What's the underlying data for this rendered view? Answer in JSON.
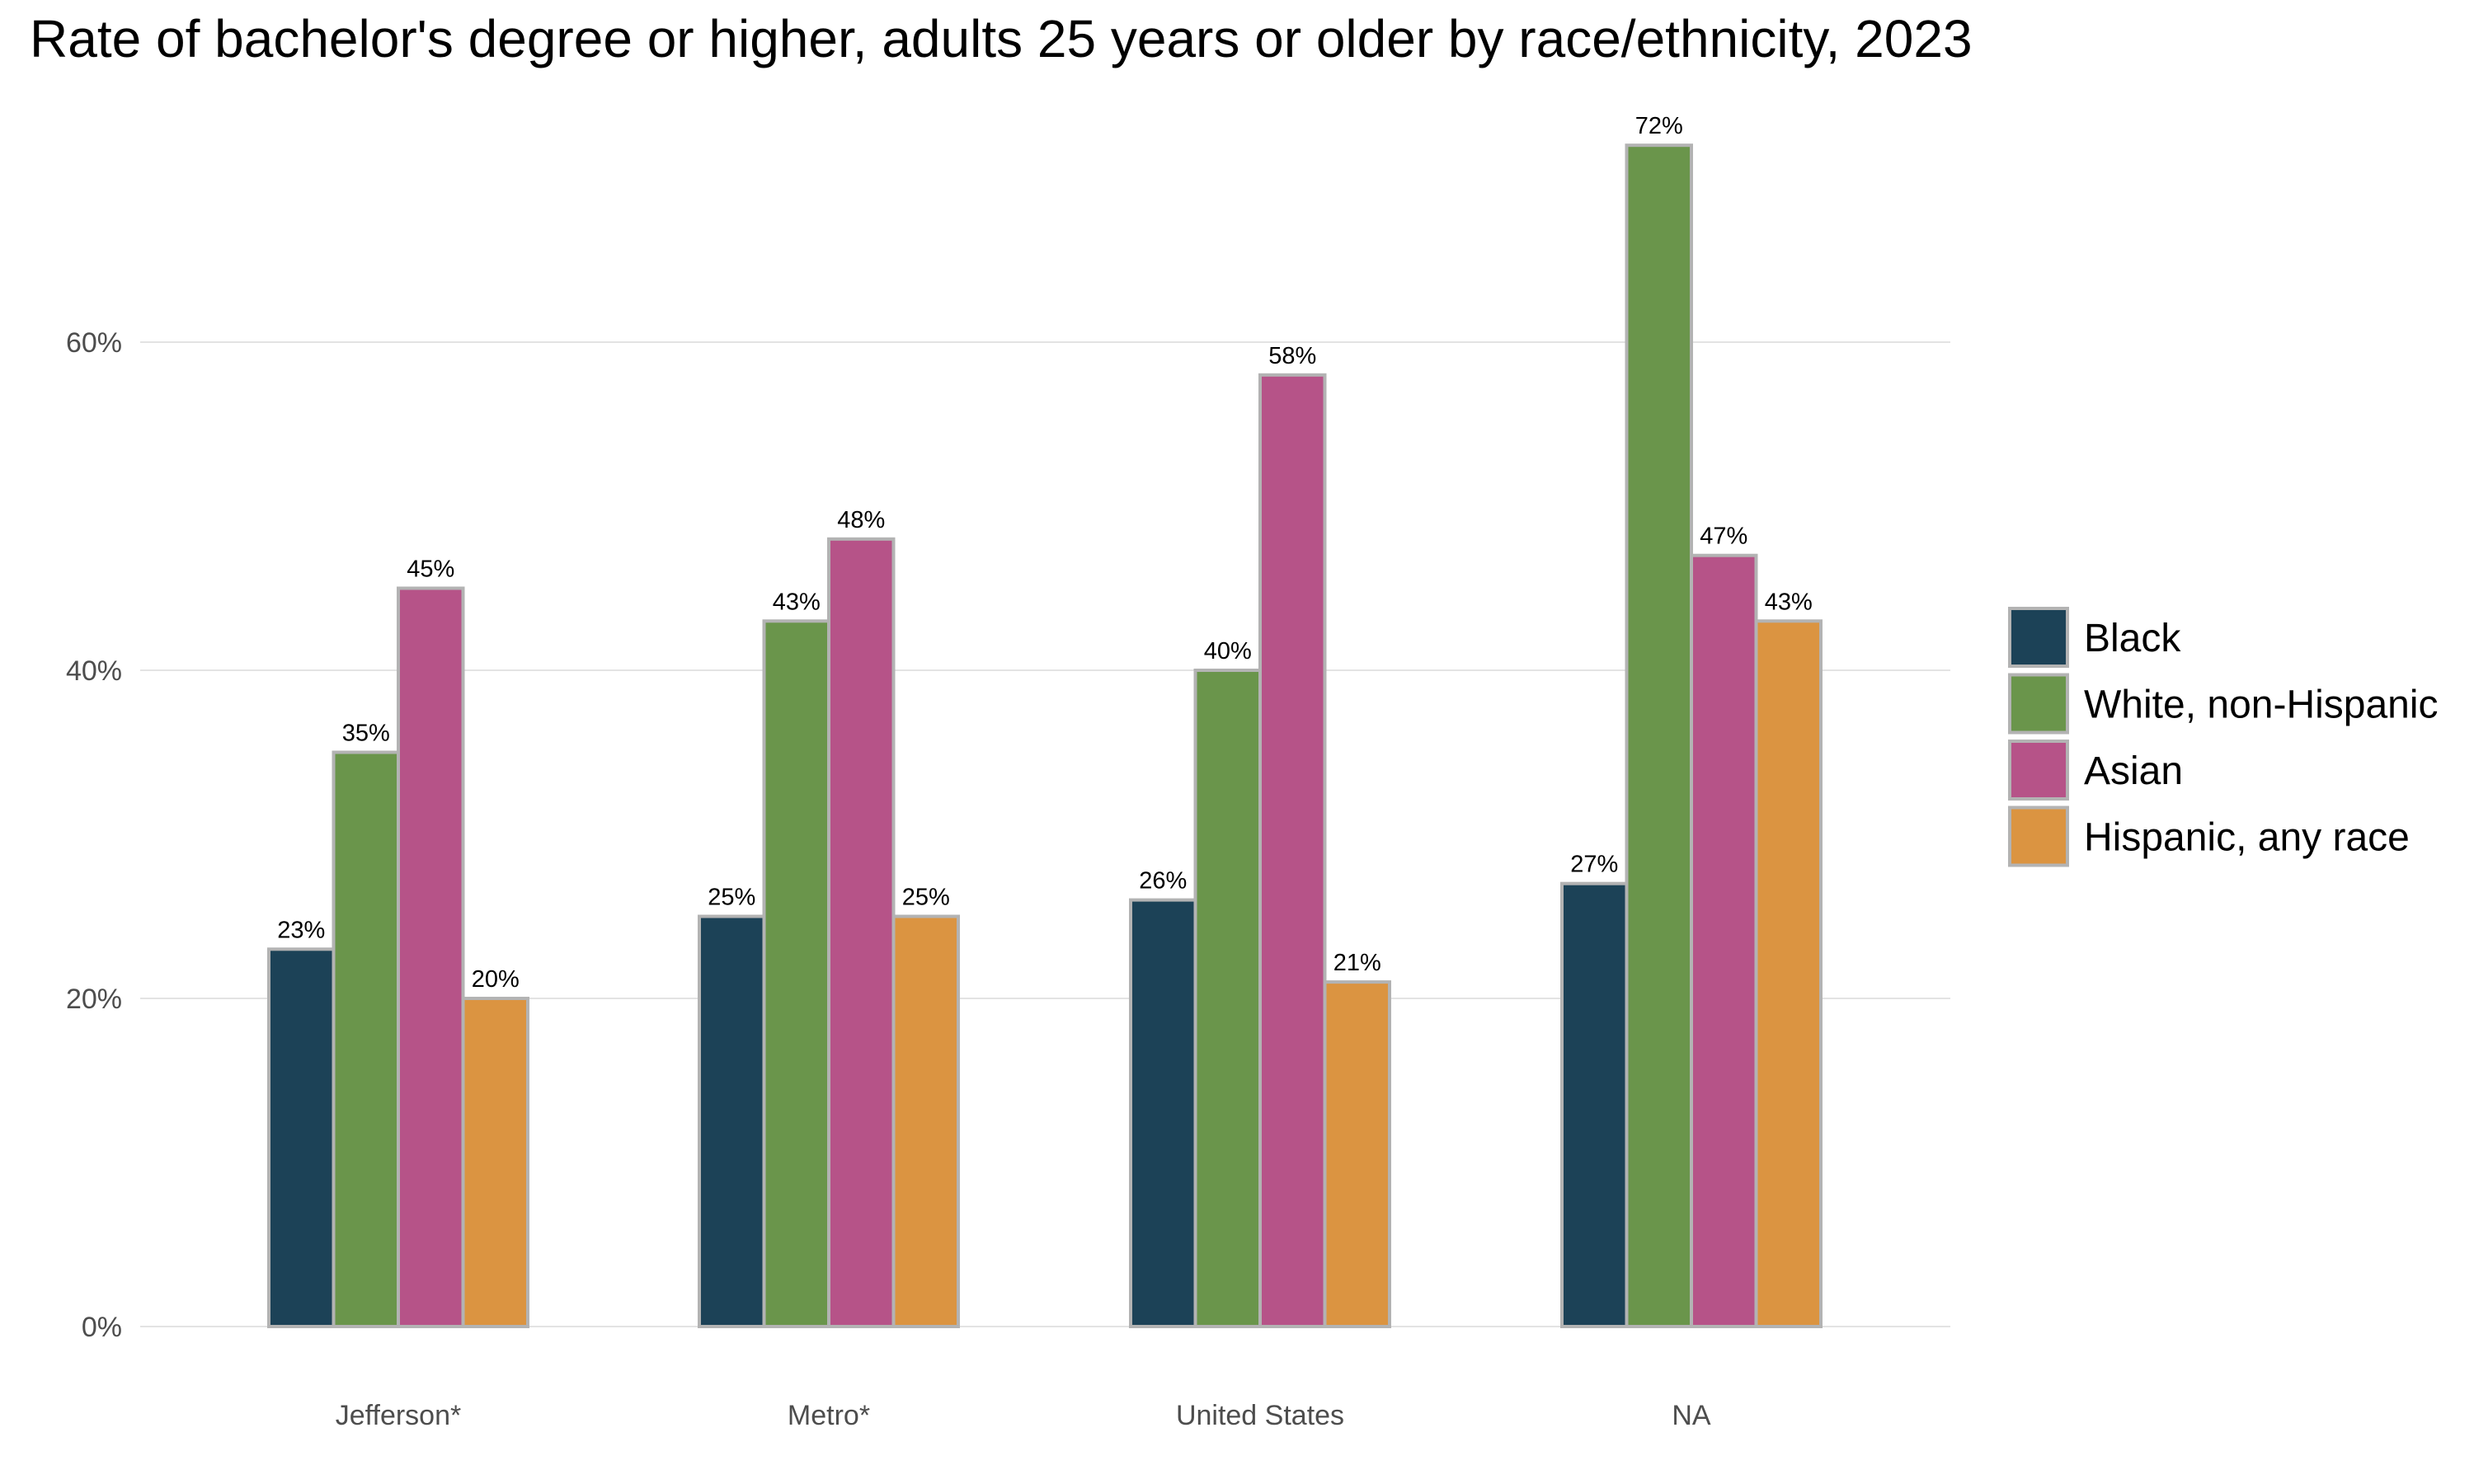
{
  "chart_data": {
    "type": "bar",
    "title": "Rate of bachelor's degree or higher, adults 25 years or older by race/ethnicity, 2023",
    "xlabel": "",
    "ylabel": "",
    "categories": [
      "Jefferson*",
      "Metro*",
      "United States",
      "NA"
    ],
    "series": [
      {
        "name": "Black",
        "color": "#1c4257",
        "values": [
          23,
          25,
          26,
          27
        ],
        "labels": [
          "23%",
          "25%",
          "26%",
          "27%"
        ]
      },
      {
        "name": "White, non-Hispanic",
        "color": "#6a954b",
        "values": [
          35,
          43,
          40,
          72
        ],
        "labels": [
          "35%",
          "43%",
          "40%",
          "72%"
        ]
      },
      {
        "name": "Asian",
        "color": "#b65388",
        "values": [
          45,
          48,
          58,
          47
        ],
        "labels": [
          "45%",
          "48%",
          "58%",
          "47%"
        ]
      },
      {
        "name": "Hispanic, any race",
        "color": "#db9441",
        "values": [
          20,
          25,
          21,
          43
        ],
        "labels": [
          "20%",
          "25%",
          "21%",
          "43%"
        ]
      }
    ],
    "ylim": [
      0,
      75
    ],
    "yticks": [
      0,
      20,
      40,
      60
    ],
    "ytick_labels": [
      "0%",
      "20%",
      "40%",
      "60%"
    ],
    "grid": true,
    "legend_position": "right",
    "bar_border_color": "#b3b3b3",
    "grid_color": "#e3e3e3"
  }
}
